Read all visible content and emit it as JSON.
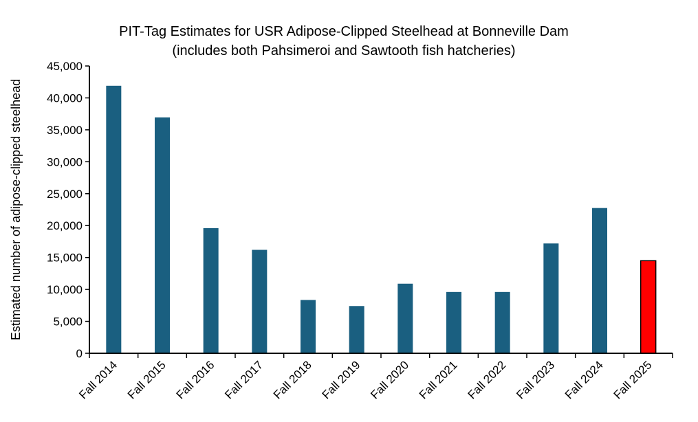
{
  "chart_data": {
    "type": "bar",
    "title": "PIT-Tag Estimates for USR Adipose-Clipped Steelhead at Bonneville Dam",
    "subtitle": "(includes both Pahsimeroi and Sawtooth fish hatcheries)",
    "xlabel": "",
    "ylabel": "Estimated number of adipose-clipped steelhead",
    "ylim": [
      0,
      45000
    ],
    "yticks": [
      0,
      5000,
      10000,
      15000,
      20000,
      25000,
      30000,
      35000,
      40000,
      45000
    ],
    "ytick_labels": [
      "0",
      "5,000",
      "10,000",
      "15,000",
      "20,000",
      "25,000",
      "30,000",
      "35,000",
      "40,000",
      "45,000"
    ],
    "grid": false,
    "categories": [
      "Fall 2014",
      "Fall 2015",
      "Fall 2016",
      "Fall 2017",
      "Fall 2018",
      "Fall 2019",
      "Fall 2020",
      "Fall 2021",
      "Fall 2022",
      "Fall 2023",
      "Fall 2024",
      "Fall 2025"
    ],
    "values": [
      41900,
      36950,
      19600,
      16200,
      8350,
      7400,
      10900,
      9600,
      9600,
      17200,
      22750,
      14500
    ],
    "colors": {
      "default": "#1a5f80",
      "highlight": "#ff0000",
      "highlight_outline": "#000000"
    },
    "highlight_index": 11
  }
}
